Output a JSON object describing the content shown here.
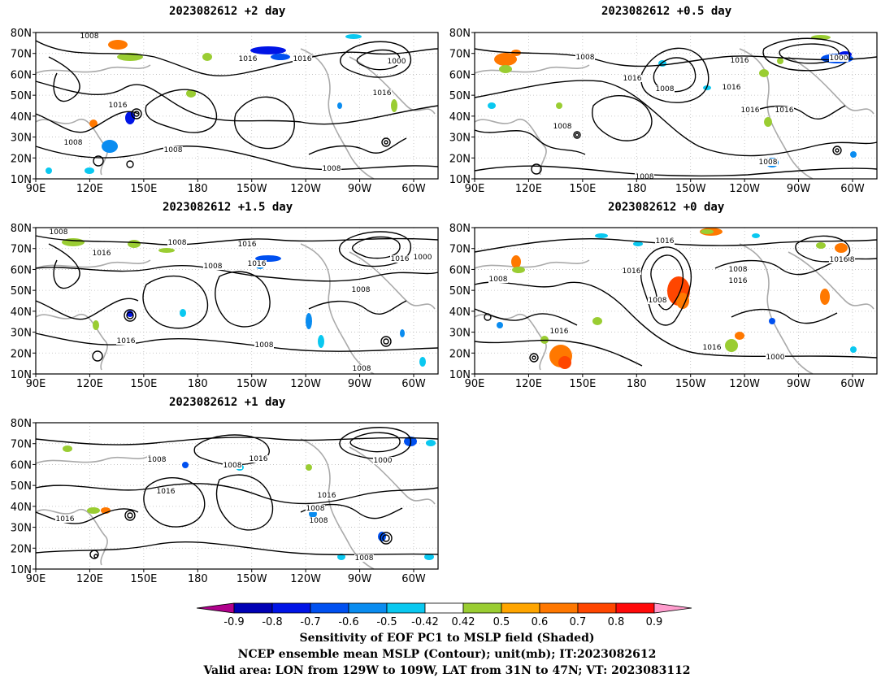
{
  "panels": [
    {
      "id": "p1",
      "title": "2023082612 +2 day"
    },
    {
      "id": "p2",
      "title": "2023082612 +0.5 day"
    },
    {
      "id": "p3",
      "title": "2023082612 +1.5 day"
    },
    {
      "id": "p4",
      "title": "2023082612 +0 day"
    },
    {
      "id": "p5",
      "title": "2023082612 +1 day"
    }
  ],
  "map_axes": {
    "lon_labels": [
      "90E",
      "120E",
      "150E",
      "180",
      "150W",
      "120W",
      "90W",
      "60W"
    ],
    "lat_labels": [
      "80N",
      "70N",
      "60N",
      "50N",
      "40N",
      "30N",
      "20N",
      "10N"
    ]
  },
  "contour_labels": {
    "p1": [
      "1008",
      "1016",
      "1008",
      "1016",
      "1016",
      "1008",
      "1016",
      "1000",
      "1008"
    ],
    "p2": [
      "1008",
      "1016",
      "1008",
      "1016",
      "1016",
      "1008",
      "1016",
      "1016",
      "1000",
      "1008",
      "1008"
    ],
    "p3": [
      "1008",
      "1016",
      "1008",
      "1016",
      "1008",
      "1016",
      "1016",
      "1000",
      "1008",
      "1008",
      "1016",
      "1008"
    ],
    "p4": [
      "1016",
      "1008",
      "1016",
      "1008",
      "1008",
      "1016",
      "1016",
      "1016",
      "1000",
      "1008",
      "1016"
    ],
    "p5": [
      "1008",
      "1016",
      "1008",
      "1016",
      "1016",
      "1008",
      "1016",
      "1000",
      "1008",
      "1008"
    ]
  },
  "colorbar": {
    "ticks": [
      "-0.9",
      "-0.8",
      "-0.7",
      "-0.6",
      "-0.5",
      "-0.42",
      "0.42",
      "0.5",
      "0.6",
      "0.7",
      "0.8",
      "0.9"
    ],
    "colors": [
      "#b0008c",
      "#0000b4",
      "#0014e6",
      "#0050f0",
      "#0a8cf0",
      "#0ac8f0",
      "#ffffff",
      "#9acd32",
      "#ffa500",
      "#ff7800",
      "#ff4600",
      "#ff0a0a",
      "#ff9ccd"
    ]
  },
  "caption": {
    "line1": "Sensitivity of EOF PC1 to MSLP field (Shaded)",
    "line2": "NCEP ensemble mean MSLP (Contour); unit(mb); IT:2023082612",
    "line3": "Valid area: LON from 129W to 109W, LAT from 31N to 47N; VT: 2023083112"
  }
}
